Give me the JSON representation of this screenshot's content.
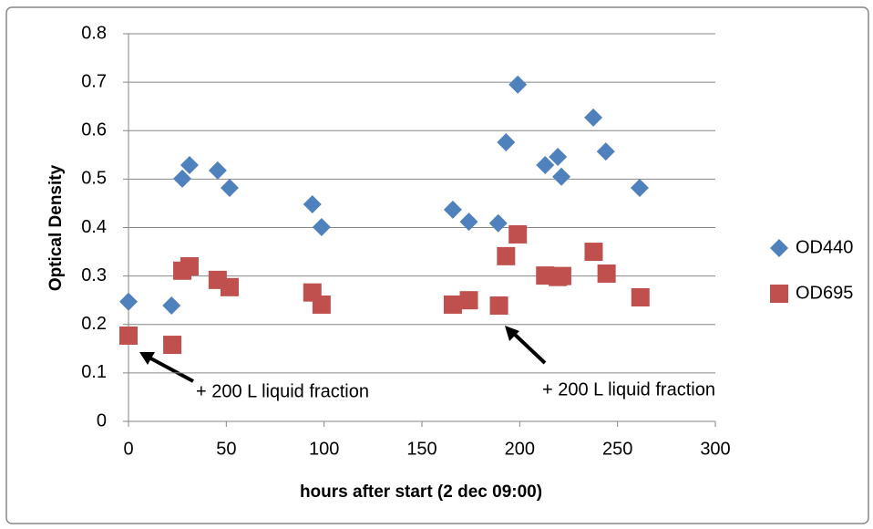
{
  "chart_data": {
    "type": "scatter",
    "x_label": "hours after start (2 dec 09:00)",
    "y_label": "Optical Density",
    "xlim": [
      0,
      300
    ],
    "xticks": [
      0,
      50,
      100,
      150,
      200,
      250,
      300
    ],
    "ylim": [
      0,
      0.8
    ],
    "yticks": [
      0,
      0.1,
      0.2,
      0.3,
      0.4,
      0.5,
      0.6,
      0.7,
      0.8
    ],
    "grid": true,
    "legend": "right",
    "annotations": [
      "+ 200 L liquid fraction",
      "+ 200 L liquid fraction"
    ],
    "series": [
      {
        "name": "OD440",
        "color": "#4f81bd",
        "marker": "diamond",
        "x": [
          0,
          22,
          27.5,
          31.2,
          45.6,
          51.7,
          94,
          98.7,
          165.8,
          174,
          189,
          193,
          199,
          213,
          219.5,
          221.3,
          237.6,
          244,
          261.3
        ],
        "values": [
          0.247,
          0.239,
          0.501,
          0.529,
          0.518,
          0.482,
          0.448,
          0.401,
          0.437,
          0.412,
          0.409,
          0.576,
          0.695,
          0.529,
          0.546,
          0.505,
          0.627,
          0.557,
          0.482
        ]
      },
      {
        "name": "OD695",
        "color": "#c0504d",
        "marker": "square",
        "x": [
          0,
          22.4,
          27.5,
          31.2,
          45.6,
          51.7,
          94,
          98.7,
          165.8,
          174,
          189.4,
          193,
          199,
          213,
          219.5,
          221.7,
          237.8,
          244.4,
          261.7
        ],
        "values": [
          0.177,
          0.158,
          0.311,
          0.32,
          0.292,
          0.277,
          0.266,
          0.241,
          0.241,
          0.25,
          0.239,
          0.341,
          0.386,
          0.301,
          0.298,
          0.3,
          0.35,
          0.305,
          0.256
        ]
      }
    ]
  }
}
